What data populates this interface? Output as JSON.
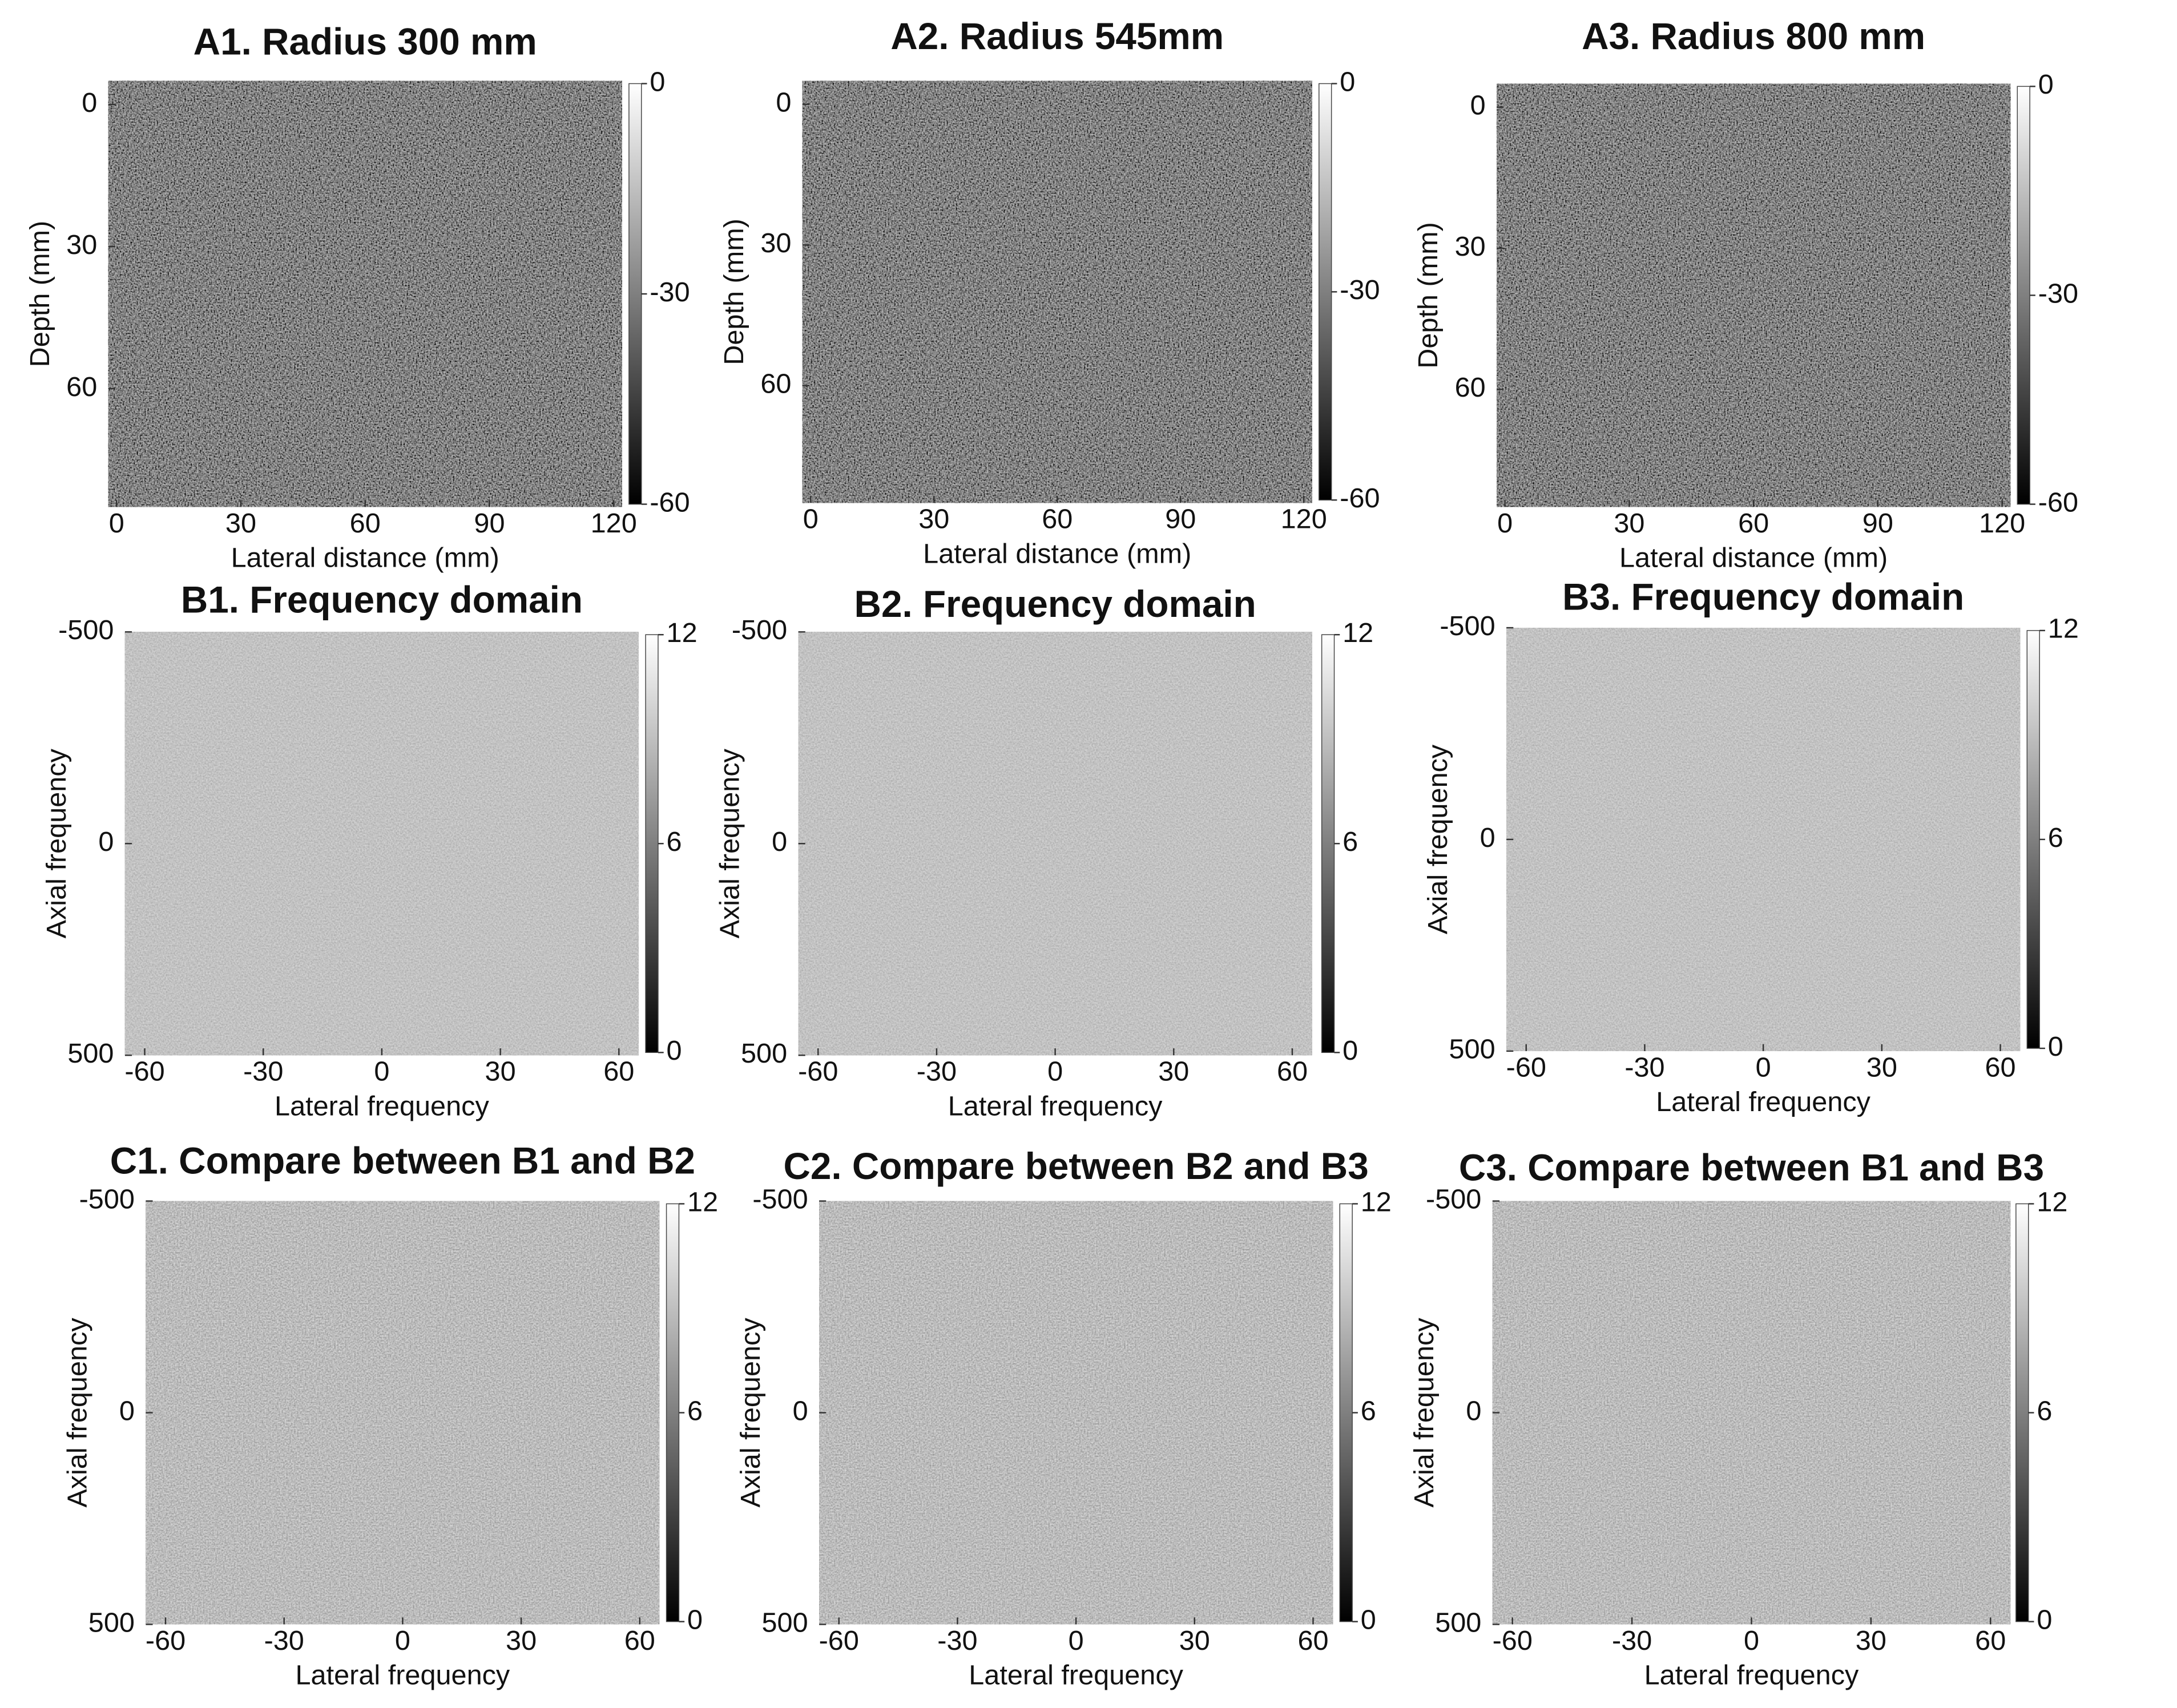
{
  "chart_data": [
    {
      "type": "image",
      "title": "A1. Radius 300 mm",
      "xlabel": "Lateral distance (mm)",
      "ylabel": "Depth (mm)",
      "xlim": [
        -2,
        122
      ],
      "ylim": [
        -5,
        85
      ],
      "xticks": [
        0,
        30,
        60,
        90,
        120
      ],
      "yticks": [
        0,
        30,
        60
      ],
      "clim": [
        -60,
        0
      ],
      "cticks": [
        0,
        -30,
        -60
      ]
    },
    {
      "type": "image",
      "title": "A2. Radius 545mm",
      "xlabel": "Lateral distance (mm)",
      "ylabel": "Depth (mm)",
      "xlim": [
        -2,
        122
      ],
      "ylim": [
        -5,
        85
      ],
      "xticks": [
        0,
        30,
        60,
        90,
        120
      ],
      "yticks": [
        0,
        30,
        60
      ],
      "clim": [
        -60,
        0
      ],
      "cticks": [
        0,
        -30,
        -60
      ]
    },
    {
      "type": "image",
      "title": "A3. Radius 800 mm",
      "xlabel": "Lateral distance (mm)",
      "ylabel": "Depth (mm)",
      "xlim": [
        -2,
        122
      ],
      "ylim": [
        -5,
        85
      ],
      "xticks": [
        0,
        30,
        60,
        90,
        120
      ],
      "yticks": [
        0,
        30,
        60
      ],
      "clim": [
        -60,
        0
      ],
      "cticks": [
        0,
        -30,
        -60
      ]
    },
    {
      "type": "image",
      "title": "B1. Frequency domain",
      "xlabel": "Lateral frequency",
      "ylabel": "Axial frequency",
      "xlim": [
        -65,
        65
      ],
      "ylim": [
        -500,
        500
      ],
      "xticks": [
        -60,
        -30,
        0,
        30,
        60
      ],
      "yticks": [
        -500,
        0,
        500
      ],
      "clim": [
        0,
        12
      ],
      "cticks": [
        12,
        6,
        0
      ]
    },
    {
      "type": "image",
      "title": "B2. Frequency domain",
      "xlabel": "Lateral frequency",
      "ylabel": "Axial frequency",
      "xlim": [
        -65,
        65
      ],
      "ylim": [
        -500,
        500
      ],
      "xticks": [
        -60,
        -30,
        0,
        30,
        60
      ],
      "yticks": [
        -500,
        0,
        500
      ],
      "clim": [
        0,
        12
      ],
      "cticks": [
        12,
        6,
        0
      ]
    },
    {
      "type": "image",
      "title": "B3. Frequency domain",
      "xlabel": "Lateral frequency",
      "ylabel": "Axial frequency",
      "xlim": [
        -65,
        65
      ],
      "ylim": [
        -500,
        500
      ],
      "xticks": [
        -60,
        -30,
        0,
        30,
        60
      ],
      "yticks": [
        -500,
        0,
        500
      ],
      "clim": [
        0,
        12
      ],
      "cticks": [
        12,
        6,
        0
      ]
    },
    {
      "type": "image",
      "title": "C1. Compare between B1 and B2",
      "xlabel": "Lateral frequency",
      "ylabel": "Axial frequency",
      "xlim": [
        -65,
        65
      ],
      "ylim": [
        -500,
        500
      ],
      "xticks": [
        -60,
        -30,
        0,
        30,
        60
      ],
      "yticks": [
        -500,
        0,
        500
      ],
      "clim": [
        0,
        12
      ],
      "cticks": [
        12,
        6,
        0
      ]
    },
    {
      "type": "image",
      "title": "C2. Compare between B2 and B3",
      "xlabel": "Lateral frequency",
      "ylabel": "Axial frequency",
      "xlim": [
        -65,
        65
      ],
      "ylim": [
        -500,
        500
      ],
      "xticks": [
        -60,
        -30,
        0,
        30,
        60
      ],
      "yticks": [
        -500,
        0,
        500
      ],
      "clim": [
        0,
        12
      ],
      "cticks": [
        12,
        6,
        0
      ]
    },
    {
      "type": "image",
      "title": "C3. Compare between B1 and B3",
      "xlabel": "Lateral frequency",
      "ylabel": "Axial frequency",
      "xlim": [
        -65,
        65
      ],
      "ylim": [
        -500,
        500
      ],
      "xticks": [
        -60,
        -30,
        0,
        30,
        60
      ],
      "yticks": [
        -500,
        0,
        500
      ],
      "clim": [
        0,
        12
      ],
      "cticks": [
        12,
        6,
        0
      ]
    }
  ]
}
